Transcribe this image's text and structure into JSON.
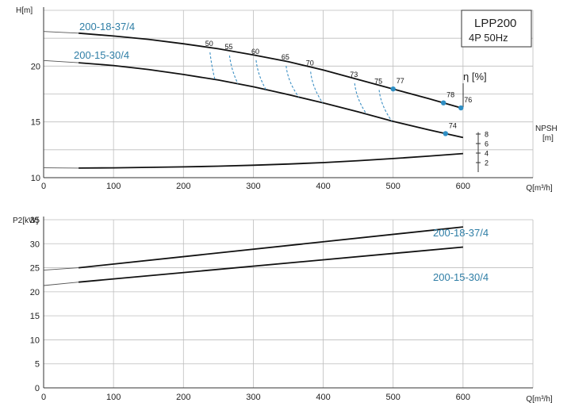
{
  "chart_data": [
    {
      "type": "line",
      "name": "head",
      "title": "LPP200",
      "subtitle": "4P  50Hz",
      "ylabel": "H[m]",
      "xlabel": "Q[m³/h]",
      "xlim": [
        0,
        700
      ],
      "ylim": [
        10,
        25
      ],
      "xticks": [
        0,
        100,
        200,
        300,
        400,
        500,
        600
      ],
      "yticks": [
        10,
        15,
        20
      ],
      "grid": true,
      "efficiency_axis_label": "η [%]",
      "npsh_axis": {
        "label_line1": "NPSH",
        "label_line2": "[m]",
        "ticks": [
          2,
          4,
          6,
          8
        ],
        "range": [
          0,
          8
        ]
      },
      "series": [
        {
          "name": "200-18-37/4",
          "x": [
            0,
            50,
            100,
            150,
            200,
            250,
            300,
            350,
            400,
            450,
            500,
            550,
            600
          ],
          "y": [
            23.1,
            22.95,
            22.7,
            22.4,
            22.0,
            21.55,
            21.0,
            20.4,
            19.65,
            18.8,
            17.95,
            17.1,
            16.2
          ],
          "draw_from": 50
        },
        {
          "name": "200-15-30/4",
          "x": [
            0,
            50,
            100,
            150,
            200,
            250,
            300,
            350,
            400,
            450,
            500,
            550,
            600
          ],
          "y": [
            20.5,
            20.3,
            20.05,
            19.7,
            19.25,
            18.75,
            18.15,
            17.45,
            16.7,
            15.9,
            15.05,
            14.3,
            13.6
          ],
          "draw_from": 50
        }
      ],
      "npsh_curve": {
        "x": [
          0,
          50,
          100,
          150,
          200,
          250,
          300,
          350,
          400,
          450,
          500,
          550,
          600
        ],
        "y": [
          0.9,
          0.85,
          0.9,
          1.0,
          1.1,
          1.25,
          1.45,
          1.7,
          2.0,
          2.4,
          2.85,
          3.35,
          3.9
        ],
        "draw_from": 50
      },
      "efficiency_isolines": [
        {
          "label": "50",
          "top_q": 238,
          "bottom_q": 245
        },
        {
          "label": "55",
          "top_q": 266,
          "bottom_q": 278
        },
        {
          "label": "60",
          "top_q": 304,
          "bottom_q": 318
        },
        {
          "label": "65",
          "top_q": 347,
          "bottom_q": 365
        },
        {
          "label": "70",
          "top_q": 382,
          "bottom_q": 399
        },
        {
          "label": "73",
          "top_q": 445,
          "bottom_q": 462
        },
        {
          "label": "75",
          "top_q": 480,
          "bottom_q": 498
        }
      ],
      "efficiency_points": [
        {
          "label": "77",
          "q": 500,
          "series": 0
        },
        {
          "label": "78",
          "q": 572,
          "series": 0
        },
        {
          "label": "76",
          "q": 597,
          "series": 0
        },
        {
          "label": "74",
          "q": 575,
          "series": 1
        }
      ]
    },
    {
      "type": "line",
      "name": "power",
      "ylabel": "P2[kW]",
      "xlabel": "Q[m³/h]",
      "xlim": [
        0,
        700
      ],
      "ylim": [
        0,
        35
      ],
      "xticks": [
        0,
        100,
        200,
        300,
        400,
        500,
        600
      ],
      "yticks": [
        0,
        5,
        10,
        15,
        20,
        25,
        30,
        35
      ],
      "grid": true,
      "series": [
        {
          "name": "200-18-37/4",
          "x": [
            0,
            50,
            600
          ],
          "y": [
            24.5,
            25.0,
            33.5
          ],
          "draw_from": 50
        },
        {
          "name": "200-15-30/4",
          "x": [
            0,
            50,
            600
          ],
          "y": [
            21.3,
            22.0,
            29.3
          ],
          "draw_from": 50
        }
      ]
    }
  ]
}
